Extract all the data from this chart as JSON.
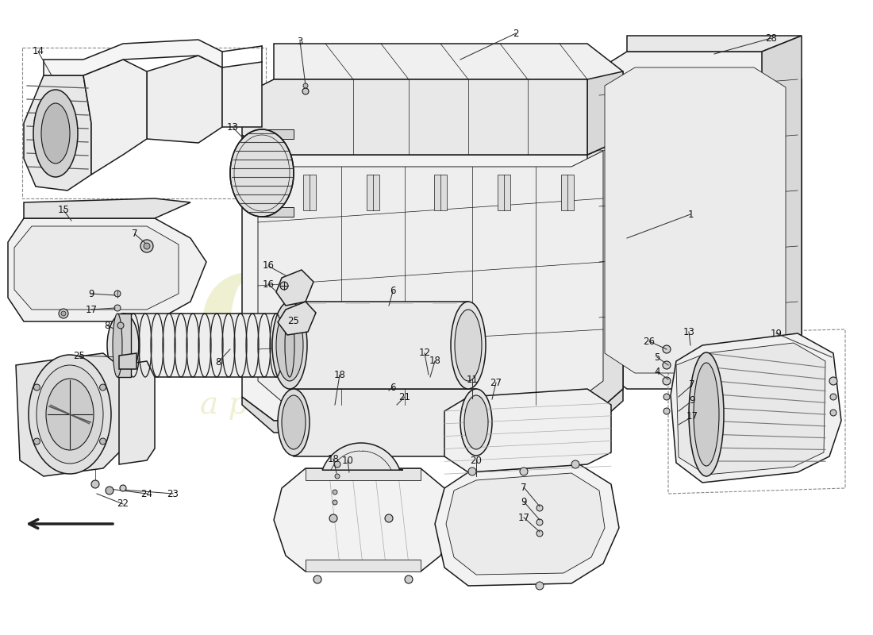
{
  "background_color": "#ffffff",
  "fig_width": 11.0,
  "fig_height": 8.0,
  "line_color": "#1a1a1a",
  "light_fill": "#f5f5f5",
  "med_fill": "#e8e8e8",
  "dark_fill": "#c8c8c8",
  "shadow_fill": "#888888",
  "watermark_color": "#eeeecc",
  "watermark_alpha": 0.9,
  "label_fontsize": 8.5,
  "label_color": "#111111",
  "leader_color": "#333333"
}
